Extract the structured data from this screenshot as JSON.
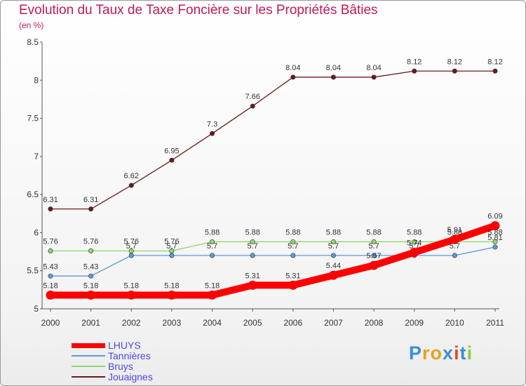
{
  "header": {
    "title": "Evolution du Taux de Taxe Foncière sur les Propriétés Bâties",
    "unit": "(en %)"
  },
  "brand": {
    "name": "Proxiti"
  },
  "chart_data": {
    "type": "line",
    "title": "Evolution du Taux de Taxe Foncière sur les Propriétés Bâties",
    "ylabel": "(en %)",
    "xlabel": "",
    "x": [
      "2000",
      "2001",
      "2002",
      "2003",
      "2004",
      "2005",
      "2006",
      "2007",
      "2008",
      "2009",
      "2010",
      "2011"
    ],
    "ylim": [
      5,
      8.5
    ],
    "yticks": [
      "5",
      "5.5",
      "6",
      "6.5",
      "7",
      "7.5",
      "8",
      "8.5"
    ],
    "grid": false,
    "legend": "bottom-left",
    "series": [
      {
        "name": "LHUYS",
        "color": "#ff0000",
        "values": [
          5.18,
          5.18,
          5.18,
          5.18,
          5.18,
          5.31,
          5.31,
          5.44,
          5.57,
          5.74,
          5.91,
          6.09
        ],
        "labels": [
          "5.18",
          "5.18",
          "5.18",
          "5.18",
          "5.18",
          "5.31",
          "5.31",
          "5.44",
          "5.57",
          "5.74",
          "5.91",
          "6.09"
        ]
      },
      {
        "name": "Tannières",
        "color": "#5b9bd5",
        "values": [
          5.43,
          5.43,
          5.7,
          5.7,
          5.7,
          5.7,
          5.7,
          5.7,
          5.7,
          5.7,
          5.7,
          5.81
        ],
        "labels": [
          "5.43",
          "5.43",
          "5.7",
          "5.7",
          "5.7",
          "5.7",
          "5.7",
          "5.7",
          "5.7",
          "5.7",
          "5.7",
          "5.81"
        ]
      },
      {
        "name": "Bruys",
        "color": "#8fd66e",
        "values": [
          5.76,
          5.76,
          5.76,
          5.76,
          5.88,
          5.88,
          5.88,
          5.88,
          5.88,
          5.88,
          5.88,
          5.88
        ],
        "labels": [
          "5.76",
          "5.76",
          "5.76",
          "5.76",
          "5.88",
          "5.88",
          "5.88",
          "5.88",
          "5.88",
          "5.88",
          "5.88",
          "5.88"
        ]
      },
      {
        "name": "Jouaignes",
        "color": "#6b1b1b",
        "values": [
          6.31,
          6.31,
          6.62,
          6.95,
          7.3,
          7.66,
          8.04,
          8.04,
          8.04,
          8.12,
          8.12,
          8.12
        ],
        "labels": [
          "6.31",
          "6.31",
          "6.62",
          "6.95",
          "7.3",
          "7.66",
          "8.04",
          "8.04",
          "8.04",
          "8.12",
          "8.12",
          "8.12"
        ]
      }
    ]
  }
}
